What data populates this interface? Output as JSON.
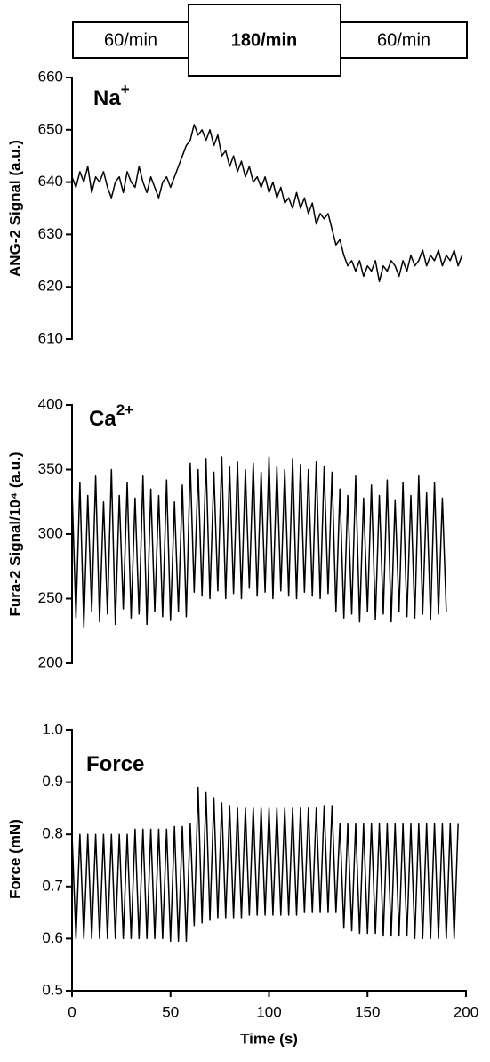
{
  "protocol": [
    "60/min",
    "180/min",
    "60/min"
  ],
  "chart_data": [
    {
      "type": "line",
      "annotation": {
        "text": "Na",
        "superscript": "+"
      },
      "ylabel": "ANG-2 Signal (a.u.)",
      "color": "#000000",
      "xlim": [
        0,
        200
      ],
      "ylim": [
        610,
        660
      ],
      "yticks": [
        610,
        620,
        630,
        640,
        650,
        660
      ],
      "x": [
        0,
        2,
        4,
        6,
        8,
        10,
        12,
        14,
        16,
        18,
        20,
        22,
        24,
        26,
        28,
        30,
        32,
        34,
        36,
        38,
        40,
        42,
        44,
        46,
        48,
        50,
        52,
        54,
        56,
        58,
        60,
        62,
        64,
        66,
        68,
        70,
        72,
        74,
        76,
        78,
        80,
        82,
        84,
        86,
        88,
        90,
        92,
        94,
        96,
        98,
        100,
        102,
        104,
        106,
        108,
        110,
        112,
        114,
        116,
        118,
        120,
        122,
        124,
        126,
        128,
        130,
        132,
        134,
        136,
        138,
        140,
        142,
        144,
        146,
        148,
        150,
        152,
        154,
        156,
        158,
        160,
        162,
        164,
        166,
        168,
        170,
        172,
        174,
        176,
        178,
        180,
        182,
        184,
        186,
        188,
        190,
        192,
        194,
        196,
        198
      ],
      "values": [
        641,
        639,
        642,
        640,
        643,
        638,
        641,
        640,
        642,
        639,
        637,
        640,
        641,
        638,
        642,
        640,
        639,
        643,
        640,
        638,
        641,
        639,
        637,
        640,
        641,
        639,
        641,
        643,
        645,
        647,
        648,
        651,
        649,
        650,
        648,
        650,
        647,
        649,
        645,
        646,
        643,
        645,
        642,
        644,
        641,
        643,
        640,
        641,
        639,
        641,
        638,
        640,
        637,
        639,
        636,
        637,
        635,
        638,
        635,
        637,
        634,
        636,
        632,
        634,
        633,
        634,
        631,
        628,
        629,
        626,
        624,
        625,
        623,
        625,
        622,
        624,
        623,
        625,
        621,
        624,
        623,
        625,
        624,
        622,
        625,
        623,
        626,
        624,
        625,
        627,
        624,
        626,
        625,
        627,
        624,
        626,
        625,
        627,
        624,
        626
      ]
    },
    {
      "type": "line",
      "annotation": {
        "text": "Ca",
        "superscript": "2+"
      },
      "ylabel": "Fura-2 Signal/10⁴ (a.u.)",
      "color": "#000000",
      "xlim": [
        0,
        200
      ],
      "ylim": [
        200,
        400
      ],
      "yticks": [
        200,
        250,
        300,
        350,
        400
      ],
      "x": [
        0,
        2,
        4,
        6,
        8,
        10,
        12,
        14,
        16,
        18,
        20,
        22,
        24,
        26,
        28,
        30,
        32,
        34,
        36,
        38,
        40,
        42,
        44,
        46,
        48,
        50,
        52,
        54,
        56,
        58,
        60,
        62,
        64,
        66,
        68,
        70,
        72,
        74,
        76,
        78,
        80,
        82,
        84,
        86,
        88,
        90,
        92,
        94,
        96,
        98,
        100,
        102,
        104,
        106,
        108,
        110,
        112,
        114,
        116,
        118,
        120,
        122,
        124,
        126,
        128,
        130,
        132,
        134,
        136,
        138,
        140,
        142,
        144,
        146,
        148,
        150,
        152,
        154,
        156,
        158,
        160,
        162,
        164,
        166,
        168,
        170,
        172,
        174,
        176,
        178,
        180,
        182,
        184,
        186,
        188,
        190
      ],
      "values": [
        335,
        235,
        340,
        228,
        330,
        240,
        345,
        232,
        325,
        238,
        350,
        230,
        330,
        242,
        340,
        235,
        328,
        238,
        345,
        230,
        335,
        240,
        330,
        236,
        342,
        233,
        325,
        240,
        338,
        236,
        355,
        255,
        350,
        252,
        358,
        250,
        348,
        256,
        360,
        250,
        352,
        254,
        356,
        250,
        350,
        258,
        355,
        252,
        348,
        255,
        360,
        250,
        352,
        256,
        350,
        252,
        358,
        250,
        354,
        255,
        350,
        252,
        356,
        250,
        352,
        254,
        348,
        240,
        335,
        235,
        330,
        238,
        345,
        232,
        328,
        240,
        338,
        234,
        330,
        238,
        342,
        232,
        326,
        240,
        340,
        236,
        330,
        235,
        345,
        238,
        332,
        234,
        340,
        238,
        328,
        240
      ]
    },
    {
      "type": "line",
      "annotation": {
        "text": "Force"
      },
      "ylabel": "Force (mN)",
      "xlabel": "Time (s)",
      "color": "#000000",
      "xlim": [
        0,
        200
      ],
      "xticks": [
        0,
        50,
        100,
        150,
        200
      ],
      "ylim": [
        0.5,
        1.0
      ],
      "yticks": [
        0.5,
        0.6,
        0.7,
        0.8,
        0.9,
        {
          "value": 1.0,
          "label": "1.0"
        }
      ],
      "x": [
        0,
        2,
        4,
        6,
        8,
        10,
        12,
        14,
        16,
        18,
        20,
        22,
        24,
        26,
        28,
        30,
        32,
        34,
        36,
        38,
        40,
        42,
        44,
        46,
        48,
        50,
        52,
        54,
        56,
        58,
        60,
        62,
        64,
        66,
        68,
        70,
        72,
        74,
        76,
        78,
        80,
        82,
        84,
        86,
        88,
        90,
        92,
        94,
        96,
        98,
        100,
        102,
        104,
        106,
        108,
        110,
        112,
        114,
        116,
        118,
        120,
        122,
        124,
        126,
        128,
        130,
        132,
        134,
        136,
        138,
        140,
        142,
        144,
        146,
        148,
        150,
        152,
        154,
        156,
        158,
        160,
        162,
        164,
        166,
        168,
        170,
        172,
        174,
        176,
        178,
        180,
        182,
        184,
        186,
        188,
        190,
        192,
        194,
        196
      ],
      "values": [
        0.8,
        0.6,
        0.8,
        0.6,
        0.8,
        0.6,
        0.8,
        0.6,
        0.8,
        0.6,
        0.8,
        0.6,
        0.8,
        0.6,
        0.8,
        0.6,
        0.81,
        0.6,
        0.81,
        0.6,
        0.81,
        0.6,
        0.81,
        0.6,
        0.81,
        0.595,
        0.815,
        0.595,
        0.815,
        0.595,
        0.82,
        0.625,
        0.89,
        0.63,
        0.88,
        0.635,
        0.87,
        0.64,
        0.86,
        0.64,
        0.855,
        0.64,
        0.85,
        0.64,
        0.85,
        0.645,
        0.85,
        0.645,
        0.85,
        0.645,
        0.85,
        0.645,
        0.85,
        0.645,
        0.85,
        0.645,
        0.85,
        0.645,
        0.85,
        0.65,
        0.85,
        0.65,
        0.85,
        0.65,
        0.855,
        0.65,
        0.855,
        0.65,
        0.82,
        0.62,
        0.82,
        0.615,
        0.82,
        0.61,
        0.82,
        0.61,
        0.82,
        0.61,
        0.82,
        0.605,
        0.82,
        0.605,
        0.82,
        0.605,
        0.82,
        0.605,
        0.82,
        0.6,
        0.82,
        0.6,
        0.82,
        0.6,
        0.82,
        0.6,
        0.82,
        0.6,
        0.82,
        0.6,
        0.82
      ]
    }
  ]
}
